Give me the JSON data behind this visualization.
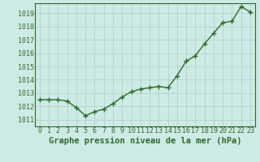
{
  "x": [
    0,
    1,
    2,
    3,
    4,
    5,
    6,
    7,
    8,
    9,
    10,
    11,
    12,
    13,
    14,
    15,
    16,
    17,
    18,
    19,
    20,
    21,
    22,
    23
  ],
  "y": [
    1012.5,
    1012.5,
    1012.5,
    1012.4,
    1011.9,
    1011.3,
    1011.6,
    1011.8,
    1012.2,
    1012.7,
    1013.1,
    1013.3,
    1013.4,
    1013.5,
    1013.4,
    1014.3,
    1015.4,
    1015.8,
    1016.7,
    1017.5,
    1018.3,
    1018.4,
    1019.5,
    1019.1
  ],
  "line_color": "#2d6a2d",
  "marker_color": "#2d6a2d",
  "bg_color": "#ceeae4",
  "grid_color": "#aacfca",
  "title": "Graphe pression niveau de la mer (hPa)",
  "ylabel_vals": [
    1011,
    1012,
    1013,
    1014,
    1015,
    1016,
    1017,
    1018,
    1019
  ],
  "ylim": [
    1010.5,
    1019.75
  ],
  "xlim": [
    -0.5,
    23.5
  ],
  "xlabel_vals": [
    0,
    1,
    2,
    3,
    4,
    5,
    6,
    7,
    8,
    9,
    10,
    11,
    12,
    13,
    14,
    15,
    16,
    17,
    18,
    19,
    20,
    21,
    22,
    23
  ],
  "title_fontsize": 7.5,
  "tick_fontsize": 6.0,
  "axis_color": "#2d6a2d",
  "linewidth": 1.0,
  "markersize": 2.2
}
